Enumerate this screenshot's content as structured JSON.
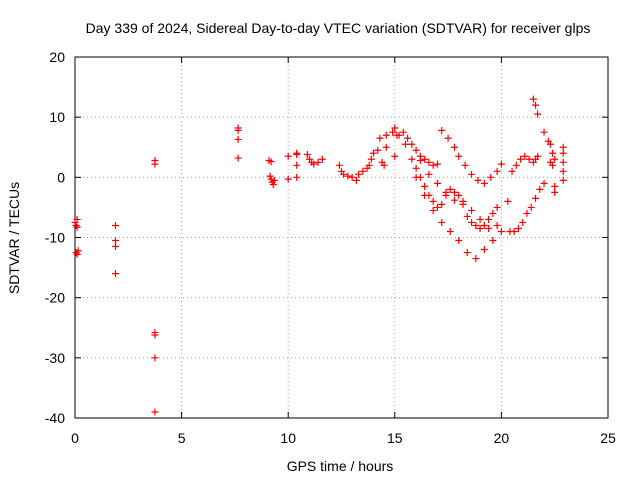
{
  "chart_data": {
    "type": "scatter",
    "title": "Day 339 of 2024, Sidereal Day-to-day VTEC variation (SDTVAR) for receiver glps",
    "xlabel": "GPS time / hours",
    "ylabel": "SDTVAR / TECUs",
    "xlim": [
      0,
      25
    ],
    "ylim": [
      -40,
      20
    ],
    "x_ticks": [
      0,
      5,
      10,
      15,
      20,
      25
    ],
    "y_ticks": [
      -40,
      -30,
      -20,
      -10,
      0,
      10,
      20
    ],
    "x_tick_labels": [
      "0",
      "5",
      "10",
      "15",
      "20",
      "25"
    ],
    "y_tick_labels": [
      "-40",
      "-30",
      "-20",
      "-10",
      "0",
      "10",
      "20"
    ],
    "grid": true,
    "marker": "+",
    "color": "#ff0000",
    "series": [
      {
        "name": "SDTVAR",
        "x": [
          0.0,
          0.05,
          0.1,
          0.1,
          0.05,
          0.1,
          0.15,
          1.9,
          1.9,
          1.9,
          1.9,
          3.75,
          3.75,
          3.75,
          3.75,
          3.75,
          3.75,
          7.65,
          7.65,
          7.65,
          7.65,
          9.1,
          9.2,
          9.15,
          9.2,
          9.25,
          9.3,
          9.35,
          10.0,
          10.0,
          10.4,
          10.4,
          10.4,
          10.4,
          10.9,
          11.0,
          11.1,
          11.2,
          11.4,
          11.6,
          12.4,
          12.5,
          12.6,
          12.8,
          13.0,
          13.2,
          13.3,
          13.5,
          13.7,
          13.8,
          13.9,
          14.0,
          14.2,
          14.4,
          14.5,
          14.6,
          14.3,
          14.6,
          14.9,
          15.0,
          15.1,
          15.0,
          15.4,
          15.6,
          15.8,
          16.0,
          16.2,
          16.4,
          16.6,
          16.8,
          17.0,
          16.0,
          16.2,
          16.4,
          16.6,
          16.8,
          17.0,
          17.2,
          17.4,
          17.6,
          17.8,
          18.0,
          18.2,
          18.4,
          18.6,
          18.8,
          19.0,
          19.2,
          19.4,
          19.6,
          19.8,
          17.2,
          17.5,
          17.8,
          18.0,
          18.3,
          18.6,
          18.9,
          19.2,
          19.5,
          19.8,
          20.0,
          15.2,
          15.5,
          15.8,
          16.0,
          16.4,
          16.8,
          17.2,
          17.6,
          18.0,
          18.4,
          18.8,
          19.2,
          19.6,
          20.0,
          16.2,
          16.6,
          17.0,
          17.4,
          17.8,
          18.2,
          18.6,
          19.0,
          19.4,
          19.8,
          20.3,
          20.4,
          20.6,
          20.8,
          21.0,
          21.2,
          21.4,
          21.6,
          21.8,
          22.0,
          20.5,
          20.7,
          20.9,
          21.1,
          21.3,
          21.5,
          21.6,
          21.7,
          21.5,
          21.6,
          21.7,
          22.0,
          22.2,
          22.3,
          22.4,
          22.5,
          22.3,
          22.4,
          22.5,
          22.5,
          22.9,
          22.9,
          22.9,
          22.9,
          22.9
        ],
        "y": [
          -7.5,
          -8.0,
          -8.3,
          -7.0,
          -12.5,
          -12.8,
          -12.2,
          -8.0,
          -10.5,
          -11.5,
          -16.0,
          2.8,
          2.2,
          -25.8,
          -26.2,
          -30.0,
          -39.0,
          8.2,
          7.8,
          6.3,
          3.2,
          2.8,
          2.6,
          0.2,
          -0.3,
          -0.8,
          -1.2,
          -0.5,
          3.5,
          -0.3,
          4.0,
          3.8,
          2.0,
          0.0,
          3.8,
          3.0,
          2.5,
          2.2,
          2.5,
          3.0,
          2.0,
          1.0,
          0.5,
          0.2,
          0.0,
          -0.5,
          0.5,
          1.0,
          1.5,
          2.0,
          3.0,
          4.0,
          4.5,
          2.5,
          2.0,
          5.0,
          6.5,
          7.0,
          7.5,
          8.2,
          7.0,
          3.5,
          7.5,
          6.5,
          5.5,
          4.5,
          3.5,
          3.0,
          2.5,
          2.0,
          2.2,
          1.5,
          0.0,
          -1.5,
          -3.0,
          -4.0,
          -5.0,
          -4.5,
          -3.0,
          -2.0,
          -2.5,
          -3.0,
          -4.5,
          -6.5,
          -7.5,
          -8.0,
          -8.5,
          -8.0,
          -7.0,
          -6.0,
          -5.0,
          7.8,
          6.5,
          5.0,
          3.5,
          2.0,
          0.5,
          -0.5,
          -1.0,
          0.0,
          1.0,
          2.2,
          7.0,
          5.5,
          3.0,
          0.0,
          -3.0,
          -5.5,
          -7.5,
          -9.0,
          -10.5,
          -12.5,
          -13.5,
          -12.0,
          -10.5,
          -9.0,
          2.8,
          0.5,
          -1.0,
          -2.5,
          -3.8,
          -4.0,
          -5.5,
          -7.0,
          -8.5,
          -8.0,
          -4.0,
          -9.0,
          -9.0,
          -8.5,
          -7.5,
          -6.0,
          -5.0,
          -3.5,
          -2.0,
          -1.0,
          1.0,
          2.0,
          3.0,
          3.5,
          3.0,
          2.5,
          3.0,
          3.5,
          13.0,
          12.0,
          10.5,
          7.5,
          6.0,
          5.5,
          4.0,
          3.0,
          2.5,
          2.0,
          -1.5,
          -2.5,
          5.0,
          4.0,
          2.5,
          1.0,
          -0.5
        ]
      }
    ]
  }
}
